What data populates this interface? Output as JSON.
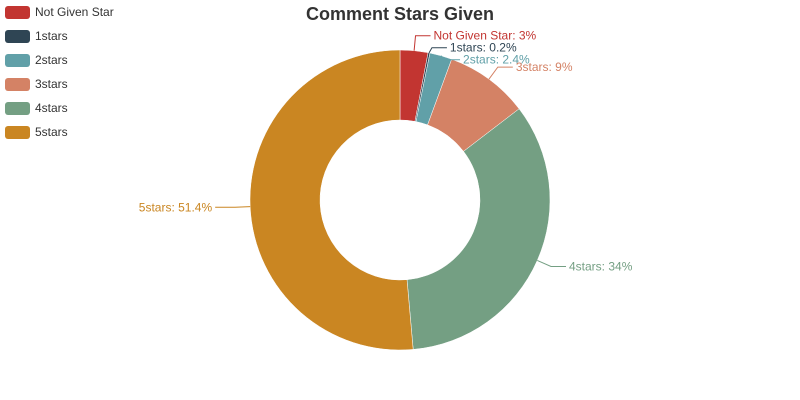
{
  "chart_data": {
    "type": "pie",
    "variant": "donut",
    "title": "Comment Stars Given",
    "label_format": "{name}: {value}%",
    "legend_position": "top-left",
    "slices": [
      {
        "name": "Not Given Star",
        "value": 3,
        "color": "#c23531"
      },
      {
        "name": "1stars",
        "value": 0.2,
        "color": "#2f4554"
      },
      {
        "name": "2stars",
        "value": 2.4,
        "color": "#61a0a8"
      },
      {
        "name": "3stars",
        "value": 9,
        "color": "#d48265"
      },
      {
        "name": "4stars",
        "value": 34,
        "color": "#749f83"
      },
      {
        "name": "5stars",
        "value": 51.4,
        "color": "#ca8622"
      }
    ]
  }
}
